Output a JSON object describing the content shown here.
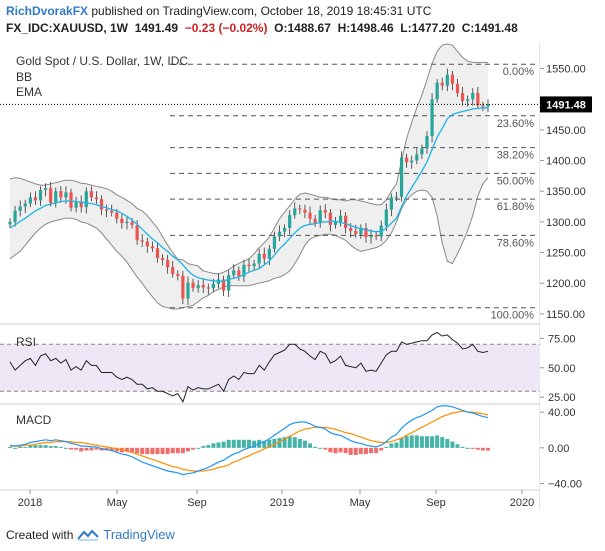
{
  "header": {
    "author": "RichDvorakFX",
    "published_text": " published on TradingView.com, October 18, 2019 18:45:31 UTC"
  },
  "ticker": {
    "symbol": "FX_IDC:XAUUSD, 1W",
    "last": "1491.49",
    "change": "−0.23 (−0.02%)",
    "o_label": "O:",
    "o": "1488.67",
    "h_label": "H:",
    "h": "1498.46",
    "l_label": "L:",
    "l": "1477.20",
    "c_label": "C:",
    "c": "1491.48"
  },
  "footer": {
    "created_with": "Created with",
    "brand": "TradingView"
  },
  "colors": {
    "up": "#26a69a",
    "down": "#ef5350",
    "candle_wick": "#333333",
    "ema": "#1eb4e6",
    "bb": "#888888",
    "bb_fill": "#efefef",
    "rsi_fill": "#ede7f6",
    "rsi_line": "#222222",
    "macd_line": "#2196f3",
    "signal_line": "#ff8c00",
    "hist_up": "#26a69a",
    "hist_down": "#ef5350",
    "price_tag": "#000000"
  },
  "chart_data": [
    {
      "type": "candlestick",
      "title": "Gold Spot / U.S. Dollar, 1W, IDC",
      "legend": [
        "BB",
        "EMA"
      ],
      "ylim": [
        1140,
        1590
      ],
      "y_ticks": [
        1150,
        1200,
        1250,
        1300,
        1350,
        1400,
        1450,
        1500,
        1550
      ],
      "x_ticks": [
        "2018",
        "May",
        "Sep",
        "2019",
        "May",
        "Sep",
        "2020"
      ],
      "last_price_label": "1491.48",
      "last_price": 1491.48,
      "fib_levels": [
        {
          "label": "0.00%",
          "value": 1557
        },
        {
          "label": "23.60%",
          "value": 1473
        },
        {
          "label": "38.20%",
          "value": 1421
        },
        {
          "label": "50.00%",
          "value": 1379
        },
        {
          "label": "61.80%",
          "value": 1337
        },
        {
          "label": "78.60%",
          "value": 1278
        },
        {
          "label": "100.00%",
          "value": 1160
        }
      ],
      "trendline_down": [
        [
          126,
          1560
        ],
        [
          132,
          1478
        ]
      ],
      "trendline_up": [
        [
          121,
          1436
        ],
        [
          133,
          1468
        ]
      ],
      "close": [
        1300,
        1318,
        1325,
        1330,
        1340,
        1335,
        1352,
        1355,
        1331,
        1350,
        1340,
        1348,
        1323,
        1333,
        1324,
        1350,
        1340,
        1337,
        1320,
        1318,
        1315,
        1305,
        1298,
        1300,
        1295,
        1270,
        1268,
        1260,
        1257,
        1241,
        1238,
        1226,
        1215,
        1212,
        1175,
        1201,
        1192,
        1197,
        1193,
        1192,
        1199,
        1206,
        1188,
        1213,
        1221,
        1211,
        1230,
        1228,
        1232,
        1248,
        1240,
        1256,
        1276,
        1284,
        1290,
        1311,
        1322,
        1320,
        1315,
        1305,
        1298,
        1319,
        1315,
        1295,
        1300,
        1310,
        1290,
        1285,
        1280,
        1290,
        1275,
        1278,
        1276,
        1294,
        1320,
        1340,
        1341,
        1405,
        1397,
        1400,
        1410,
        1420,
        1440,
        1500,
        1527,
        1522,
        1540,
        1525,
        1510,
        1497,
        1500,
        1510,
        1490,
        1488,
        1492
      ],
      "bb_upper": [
        1370,
        1372,
        1371,
        1368,
        1365,
        1362,
        1360,
        1360,
        1362,
        1364,
        1366,
        1368,
        1368,
        1366,
        1363,
        1362,
        1360,
        1358,
        1356,
        1354,
        1350,
        1344,
        1340,
        1335,
        1330,
        1322,
        1318,
        1310,
        1300,
        1290,
        1276,
        1262,
        1250,
        1239,
        1238,
        1232,
        1230,
        1228,
        1220,
        1218,
        1216,
        1215,
        1218,
        1222,
        1228,
        1232,
        1236,
        1240,
        1248,
        1258,
        1266,
        1275,
        1290,
        1305,
        1316,
        1326,
        1337,
        1345,
        1347,
        1345,
        1343,
        1340,
        1340,
        1338,
        1336,
        1336,
        1334,
        1336,
        1336,
        1334,
        1332,
        1330,
        1328,
        1328,
        1336,
        1350,
        1362,
        1400,
        1436,
        1462,
        1486,
        1507,
        1532,
        1558,
        1578,
        1588,
        1590,
        1588,
        1578,
        1568,
        1562,
        1560,
        1560,
        1560,
        1560
      ],
      "bb_lower": [
        1240,
        1246,
        1252,
        1262,
        1272,
        1282,
        1290,
        1296,
        1300,
        1302,
        1304,
        1306,
        1306,
        1304,
        1300,
        1298,
        1294,
        1290,
        1282,
        1272,
        1262,
        1252,
        1244,
        1234,
        1222,
        1210,
        1200,
        1188,
        1178,
        1168,
        1162,
        1160,
        1158,
        1158,
        1160,
        1162,
        1164,
        1170,
        1176,
        1180,
        1186,
        1190,
        1194,
        1196,
        1196,
        1196,
        1196,
        1196,
        1198,
        1200,
        1202,
        1204,
        1208,
        1210,
        1214,
        1220,
        1232,
        1246,
        1262,
        1272,
        1276,
        1278,
        1280,
        1280,
        1278,
        1274,
        1270,
        1262,
        1256,
        1252,
        1254,
        1256,
        1258,
        1262,
        1270,
        1282,
        1300,
        1322,
        1336,
        1344,
        1350,
        1352,
        1350,
        1340,
        1310,
        1266,
        1236,
        1232,
        1248,
        1266,
        1286,
        1310,
        1342,
        1362,
        1372
      ],
      "ema": [
        1290,
        1295,
        1301,
        1306,
        1312,
        1318,
        1322,
        1327,
        1329,
        1331,
        1333,
        1334,
        1334,
        1333,
        1332,
        1331,
        1330,
        1328,
        1325,
        1323,
        1320,
        1318,
        1314,
        1309,
        1303,
        1296,
        1288,
        1280,
        1272,
        1266,
        1258,
        1252,
        1244,
        1238,
        1230,
        1220,
        1213,
        1209,
        1207,
        1205,
        1204,
        1203,
        1204,
        1206,
        1208,
        1210,
        1214,
        1218,
        1221,
        1224,
        1230,
        1236,
        1246,
        1256,
        1264,
        1273,
        1282,
        1290,
        1294,
        1296,
        1297,
        1299,
        1300,
        1301,
        1301,
        1299,
        1297,
        1294,
        1291,
        1289,
        1287,
        1285,
        1284,
        1285,
        1290,
        1298,
        1306,
        1325,
        1342,
        1356,
        1369,
        1383,
        1398,
        1418,
        1438,
        1452,
        1468,
        1475,
        1478,
        1480,
        1482,
        1484,
        1485,
        1486,
        1486
      ]
    },
    {
      "type": "line",
      "title": "RSI",
      "ylim": [
        20,
        83
      ],
      "y_ticks": [
        25,
        50,
        75
      ],
      "band": [
        30,
        70
      ],
      "values": [
        55,
        48,
        52,
        56,
        58,
        52,
        60,
        62,
        56,
        58,
        54,
        57,
        48,
        51,
        48,
        56,
        52,
        52,
        46,
        46,
        46,
        42,
        40,
        42,
        40,
        36,
        36,
        32,
        33,
        30,
        30,
        28,
        26,
        28,
        21,
        34,
        31,
        33,
        32,
        32,
        34,
        36,
        30,
        40,
        43,
        40,
        46,
        45,
        45,
        52,
        48,
        55,
        61,
        63,
        65,
        70,
        70,
        66,
        64,
        60,
        57,
        64,
        62,
        54,
        56,
        60,
        52,
        51,
        50,
        54,
        47,
        48,
        47,
        54,
        61,
        64,
        64,
        72,
        70,
        71,
        72,
        73,
        73,
        78,
        80,
        77,
        78,
        74,
        71,
        66,
        67,
        70,
        64,
        63,
        64
      ]
    },
    {
      "type": "bar+line",
      "title": "MACD",
      "ylim": [
        -45,
        48
      ],
      "y_ticks": [
        40,
        0,
        -40
      ],
      "macd": [
        3,
        2,
        3,
        4,
        6,
        7,
        8,
        9,
        8,
        9,
        8,
        7,
        5,
        4,
        2,
        2,
        1,
        1,
        -1,
        -2,
        -3,
        -5,
        -7,
        -8,
        -10,
        -13,
        -16,
        -18,
        -20,
        -22,
        -24,
        -26,
        -27,
        -28,
        -30,
        -29,
        -28,
        -26,
        -24,
        -22,
        -19,
        -16,
        -14,
        -10,
        -7,
        -5,
        -2,
        0,
        2,
        5,
        7,
        10,
        14,
        18,
        22,
        26,
        28,
        29,
        29,
        27,
        24,
        23,
        21,
        17,
        15,
        14,
        11,
        8,
        6,
        5,
        3,
        2,
        1,
        3,
        7,
        12,
        15,
        22,
        27,
        31,
        34,
        36,
        39,
        42,
        46,
        47,
        47,
        46,
        44,
        42,
        40,
        39,
        37,
        35,
        34
      ],
      "signal": [
        2,
        2,
        2,
        3,
        3,
        4,
        5,
        6,
        6,
        7,
        7,
        7,
        7,
        6,
        6,
        5,
        4,
        3,
        2,
        1,
        0,
        -1,
        -2,
        -4,
        -5,
        -7,
        -9,
        -11,
        -13,
        -15,
        -17,
        -19,
        -21,
        -22,
        -24,
        -25,
        -26,
        -26,
        -26,
        -25,
        -24,
        -22,
        -21,
        -19,
        -16,
        -14,
        -11,
        -9,
        -6,
        -4,
        -1,
        1,
        4,
        7,
        10,
        13,
        16,
        19,
        21,
        22,
        23,
        23,
        23,
        22,
        21,
        19,
        17,
        16,
        14,
        12,
        10,
        8,
        7,
        6,
        6,
        7,
        9,
        11,
        14,
        17,
        20,
        23,
        26,
        29,
        32,
        35,
        37,
        39,
        40,
        41,
        40,
        40,
        39,
        38,
        37
      ]
    }
  ]
}
